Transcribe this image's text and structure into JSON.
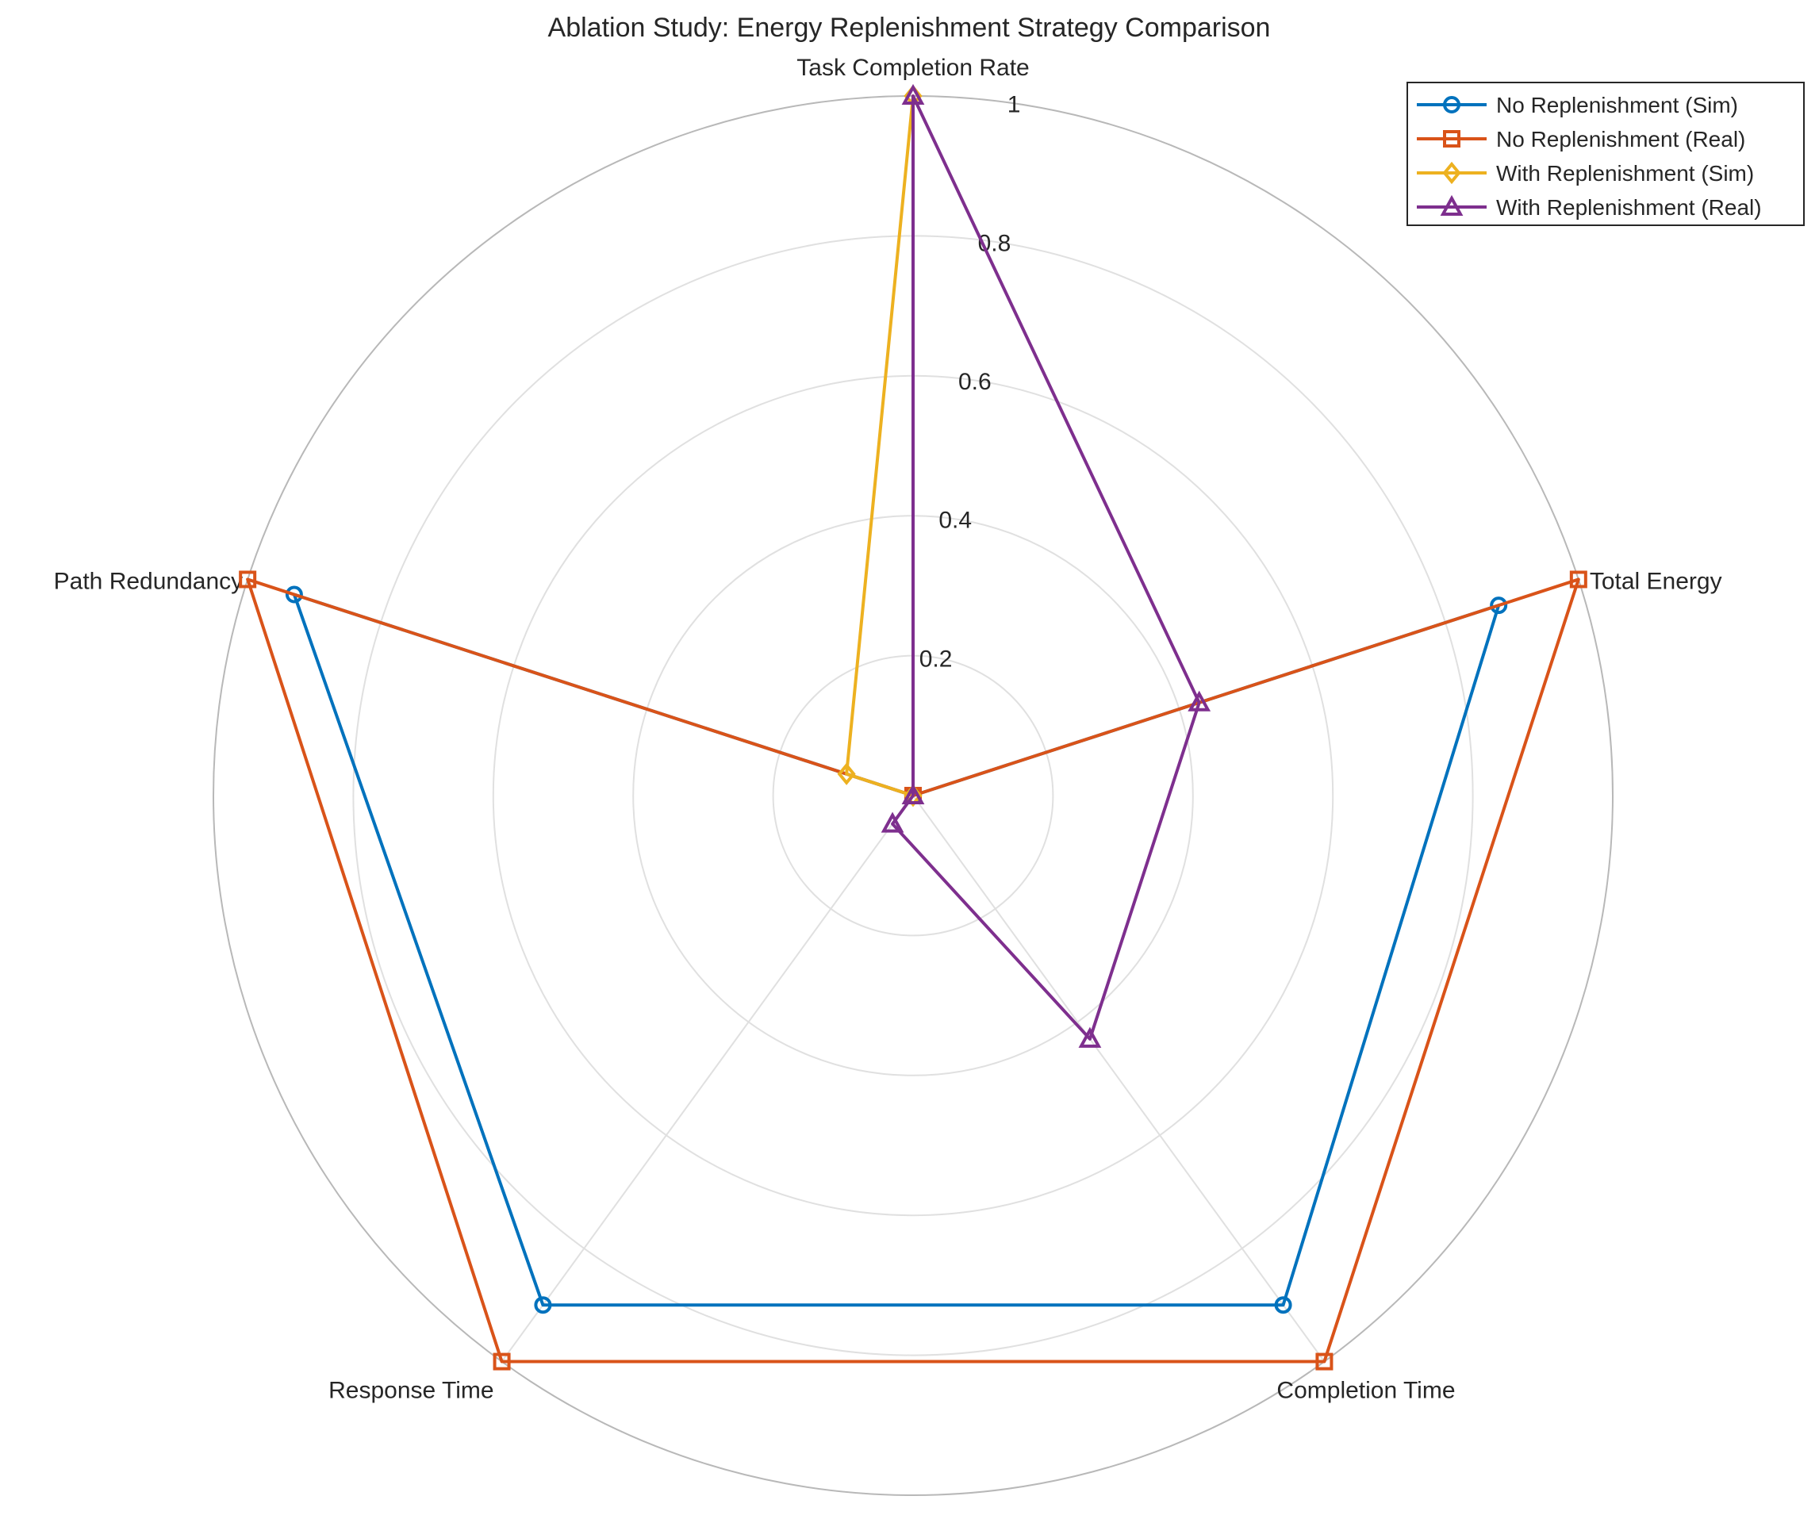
{
  "chart_data": {
    "type": "radar",
    "title": "Ablation Study: Energy Replenishment Strategy Comparison",
    "axes": [
      "Task Completion Rate",
      "Total Energy",
      "Completion Time",
      "Response Time",
      "Path Redundancy"
    ],
    "r_ticks": [
      0.2,
      0.4,
      0.6,
      0.8,
      1
    ],
    "r_tick_labels": [
      "0.2",
      "0.4",
      "0.6",
      "0.8",
      "1"
    ],
    "rlim": [
      0,
      1
    ],
    "grid": true,
    "legend_position": "top-right",
    "series": [
      {
        "name": "No Replenishment (Sim)",
        "color": "#0072BD",
        "marker": "circle",
        "values": [
          0.0,
          0.88,
          0.9,
          0.9,
          0.93
        ]
      },
      {
        "name": "No Replenishment (Real)",
        "color": "#D95319",
        "marker": "square",
        "values": [
          0.0,
          1.0,
          1.0,
          1.0,
          1.0
        ]
      },
      {
        "name": "With Replenishment (Sim)",
        "color": "#EDB120",
        "marker": "diamond",
        "values": [
          1.0,
          0.0,
          0.0,
          0.0,
          0.1
        ]
      },
      {
        "name": "With Replenishment (Real)",
        "color": "#7E2F8E",
        "marker": "triangle",
        "values": [
          1.0,
          0.43,
          0.43,
          0.05,
          0.0
        ]
      }
    ]
  }
}
